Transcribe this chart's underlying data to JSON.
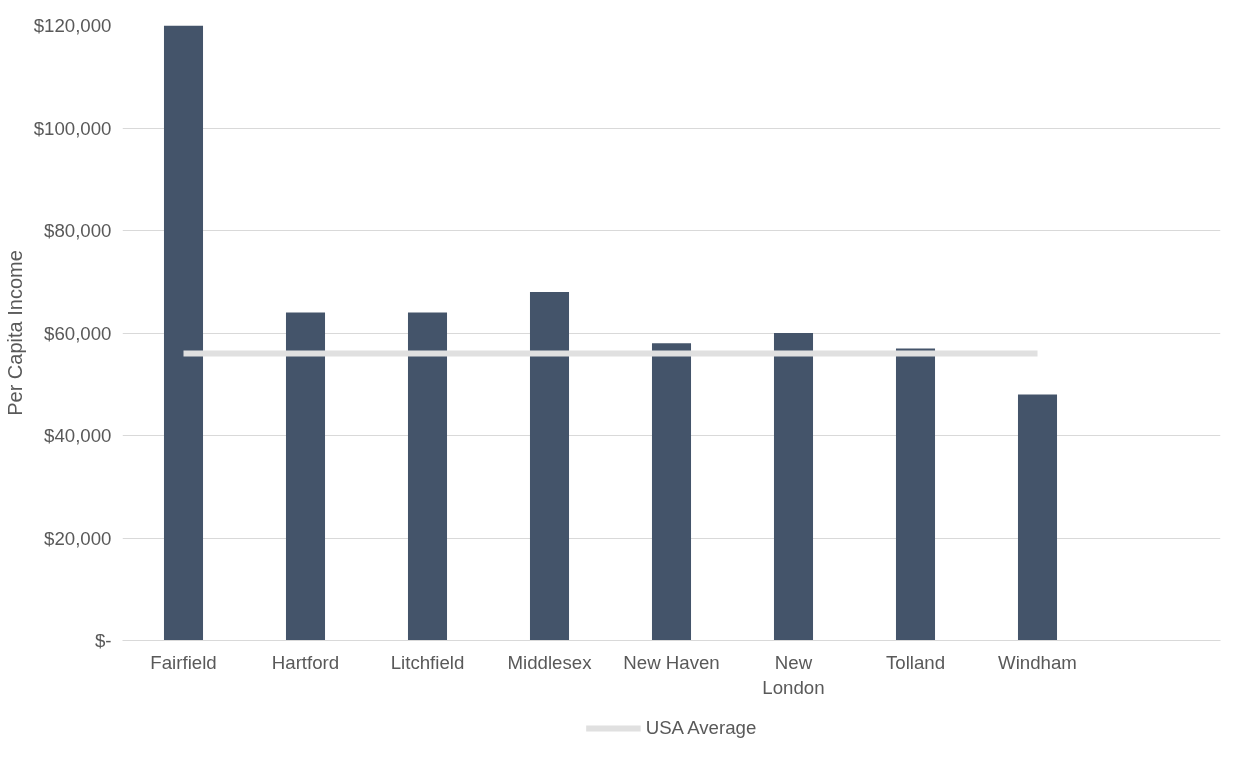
{
  "chart_data": {
    "type": "bar",
    "ylabel": "Per Capita Income",
    "categories": [
      "Fairfield",
      "Hartford",
      "Litchfield",
      "Middlesex",
      "New Haven",
      "New London",
      "Tolland",
      "Windham",
      null
    ],
    "series": [
      {
        "color": "#44546a",
        "values": [
          120000,
          64000,
          64000,
          68000,
          58000,
          60000,
          57000,
          48000,
          null
        ]
      },
      {
        "name": "USA Average",
        "type": "line",
        "color": "#e0e0e0",
        "values": [
          56000,
          56000,
          56000,
          56000,
          56000,
          56000,
          56000,
          56000,
          null
        ]
      }
    ],
    "ylim": [
      0,
      120000
    ],
    "yticks": [
      {
        "value": 0,
        "label": "$-"
      },
      {
        "value": 20000,
        "label": "$20,000"
      },
      {
        "value": 40000,
        "label": "$40,000"
      },
      {
        "value": 60000,
        "label": "$60,000"
      },
      {
        "value": 80000,
        "label": "$80,000"
      },
      {
        "value": 100000,
        "label": "$100,000"
      },
      {
        "value": 120000,
        "label": "$120,000"
      }
    ],
    "grid": "y",
    "legend": "bottom"
  }
}
